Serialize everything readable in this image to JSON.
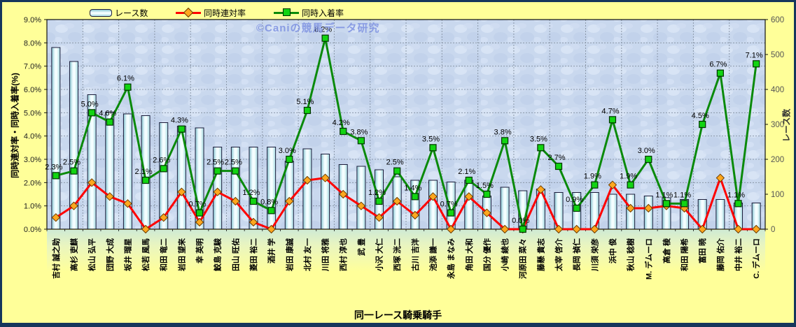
{
  "frame": {
    "background": "#FFFF99",
    "border_color": "#16365C"
  },
  "legend": {
    "races_label": "レース数",
    "rentai_label": "同時連対率",
    "nyuchaku_label": "同時入着率"
  },
  "watermark": "©Caniの競馬データ研究",
  "axes": {
    "left_title": "同時連対率・同時入着率(%)",
    "left_ticks": [
      "9.0%",
      "8.0%",
      "7.0%",
      "6.0%",
      "5.0%",
      "4.0%",
      "3.0%",
      "2.0%",
      "1.0%",
      "0.0%"
    ],
    "right_title": "レース数",
    "right_ticks": [
      "600",
      "500",
      "400",
      "300",
      "200",
      "100",
      "0"
    ],
    "x_title": "同一レース騎乗騎手"
  },
  "chart_data": {
    "type": "combo",
    "title": "同一レース騎乗騎手",
    "left_axis": {
      "label": "同時連対率・同時入着率(%)",
      "min": 0,
      "max": 9,
      "step": 1,
      "unit": "%"
    },
    "right_axis": {
      "label": "レース数",
      "min": 0,
      "max": 600,
      "step": 100
    },
    "grid": true,
    "legend_position": "top",
    "categories": [
      "吉村 誠之助",
      "高杉 吏麒",
      "松山 弘平",
      "団野 大成",
      "坂井 瑠星",
      "松若 風馬",
      "和田 竜二",
      "岩田 望来",
      "幸 英明",
      "鮫島 克駿",
      "田山 旺佑",
      "菱田 裕二",
      "酒井 学",
      "岩田 康誠",
      "北村 友一",
      "川田 将雅",
      "西村 淳也",
      "武 豊",
      "小沢 大仁",
      "西塚 洸二",
      "古川 吉洋",
      "池添 謙一",
      "永島 まなみ",
      "角田 大和",
      "国分 優作",
      "小崎 綾也",
      "河原田 菜々",
      "藤懸 貴志",
      "太宰 啓介",
      "長岡 禎仁",
      "川須 栄彦",
      "浜中 俊",
      "秋山 稔樹",
      "M. デムーロ",
      "高倉 稜",
      "和田 陽希",
      "富田 暁",
      "藤岡 佑介",
      "中井 裕二",
      "C. デムーロ"
    ],
    "series": [
      {
        "name": "レース数",
        "type": "bar",
        "axis": "right",
        "color": "#BFE6EC",
        "border": "#1c1c3a",
        "values": [
          520,
          480,
          385,
          335,
          330,
          325,
          305,
          295,
          290,
          235,
          235,
          235,
          235,
          195,
          230,
          215,
          185,
          180,
          170,
          150,
          140,
          140,
          135,
          140,
          95,
          120,
          110,
          115,
          105,
          105,
          105,
          100,
          100,
          95,
          90,
          85,
          85,
          85,
          75,
          75
        ]
      },
      {
        "name": "同時連対率",
        "type": "line",
        "marker": "diamond",
        "axis": "left",
        "color": "#FF0000",
        "marker_color": "#FFA71E",
        "values": [
          0.5,
          1.0,
          2.0,
          1.4,
          1.1,
          0.0,
          0.5,
          1.6,
          0.3,
          1.6,
          1.2,
          0.3,
          0.0,
          1.2,
          2.1,
          2.2,
          1.5,
          1.0,
          0.5,
          1.2,
          0.6,
          1.4,
          0.0,
          1.4,
          0.7,
          0.0,
          0.0,
          1.7,
          0.0,
          0.0,
          0.0,
          1.9,
          0.9,
          0.9,
          1.0,
          0.9,
          0.0,
          2.2,
          0.0,
          0.0
        ]
      },
      {
        "name": "同時入着率",
        "type": "line",
        "marker": "square",
        "axis": "left",
        "color": "#0A8A0A",
        "marker_color": "#12D412",
        "data_labels": true,
        "label_format": "0.0%",
        "values": [
          2.3,
          2.5,
          5.0,
          4.6,
          6.1,
          2.1,
          2.6,
          4.3,
          0.7,
          2.5,
          2.5,
          1.2,
          0.8,
          3.0,
          5.1,
          8.2,
          4.2,
          3.8,
          1.2,
          2.5,
          1.4,
          3.5,
          0.7,
          2.1,
          1.5,
          3.8,
          0.0,
          3.5,
          2.7,
          0.9,
          1.9,
          4.7,
          1.9,
          3.0,
          1.1,
          1.1,
          4.5,
          6.7,
          1.1,
          7.1
        ]
      }
    ]
  }
}
